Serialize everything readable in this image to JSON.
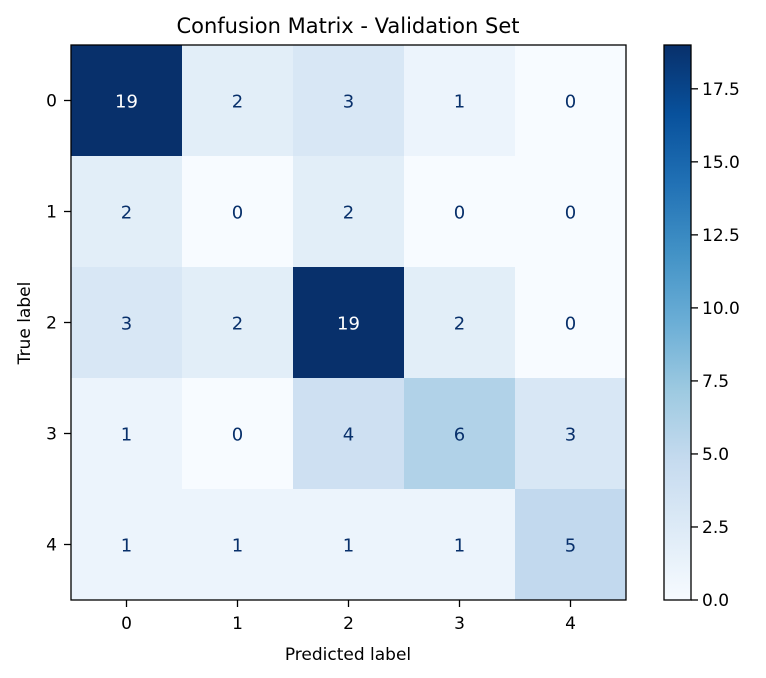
{
  "chart_data": {
    "type": "heatmap",
    "title": "Confusion Matrix - Validation Set",
    "xlabel": "Predicted label",
    "ylabel": "True label",
    "x_categories": [
      "0",
      "1",
      "2",
      "3",
      "4"
    ],
    "y_categories": [
      "0",
      "1",
      "2",
      "3",
      "4"
    ],
    "values": [
      [
        19,
        2,
        3,
        1,
        0
      ],
      [
        2,
        0,
        2,
        0,
        0
      ],
      [
        3,
        2,
        19,
        2,
        0
      ],
      [
        1,
        0,
        4,
        6,
        3
      ],
      [
        1,
        1,
        1,
        1,
        5
      ]
    ],
    "colormap": "Blues",
    "vmin": 0,
    "vmax": 19,
    "colorbar_ticks": [
      "0.0",
      "2.5",
      "5.0",
      "7.5",
      "10.0",
      "12.5",
      "15.0",
      "17.5"
    ],
    "colorbar_tick_values": [
      0,
      2.5,
      5,
      7.5,
      10,
      12.5,
      15,
      17.5
    ],
    "text_color_dark": "#08306b",
    "text_color_light": "#ffffff",
    "grid": false
  }
}
